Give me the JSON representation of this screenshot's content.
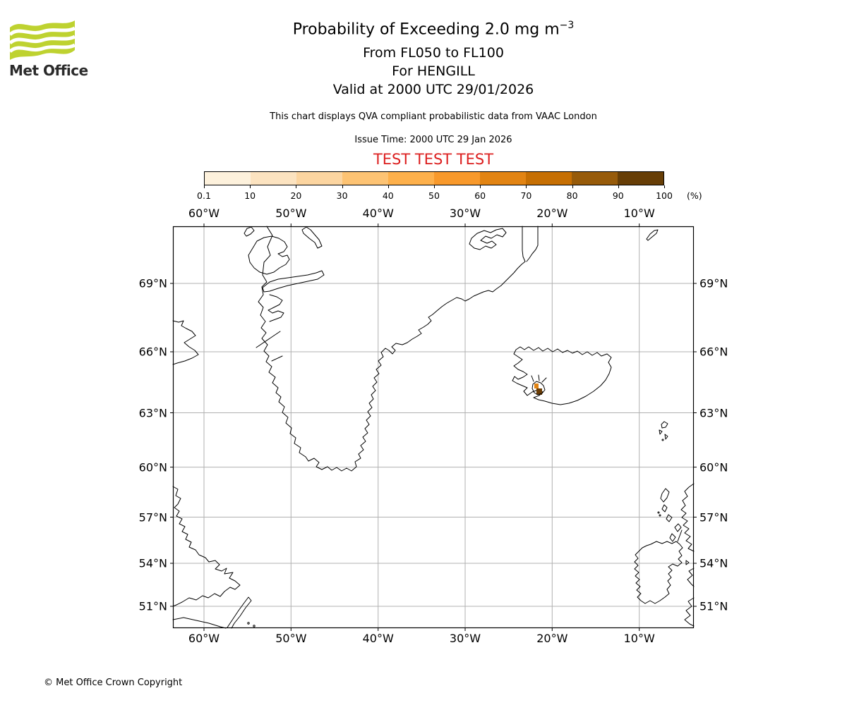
{
  "logo": {
    "text": "Met Office",
    "green": "#bed230"
  },
  "header": {
    "title": "Probability of Exceeding 2.0 mg m",
    "title_sup": "−3",
    "subtitle1": "From FL050 to FL100",
    "subtitle2": "For HENGILL",
    "subtitle3": "Valid at 2000 UTC 29/01/2026",
    "description": "This chart displays QVA compliant probabilistic data from VAAC London",
    "issue_time": "Issue Time: 2000 UTC 29 Jan 2026",
    "test_banner": "TEST TEST TEST",
    "test_color": "#dc1f1f"
  },
  "colorbar": {
    "tick_labels": [
      "0.1",
      "10",
      "20",
      "30",
      "40",
      "50",
      "60",
      "70",
      "80",
      "90",
      "100"
    ],
    "unit": "(%)",
    "colors": [
      "#fdf1dc",
      "#fce3c0",
      "#fcd5a0",
      "#fdc373",
      "#fdb04b",
      "#f8992b",
      "#e28413",
      "#c66f03",
      "#975b0a",
      "#673e06"
    ]
  },
  "map": {
    "lon_labels": [
      "60°W",
      "50°W",
      "40°W",
      "30°W",
      "20°W",
      "10°W"
    ],
    "lat_labels": [
      "69°N",
      "66°N",
      "63°N",
      "60°N",
      "57°N",
      "54°N",
      "51°N"
    ],
    "marker_colors": {
      "orange": "#e28413",
      "brown": "#6b3d05"
    }
  },
  "footer": {
    "copyright": "© Met Office Crown Copyright"
  }
}
